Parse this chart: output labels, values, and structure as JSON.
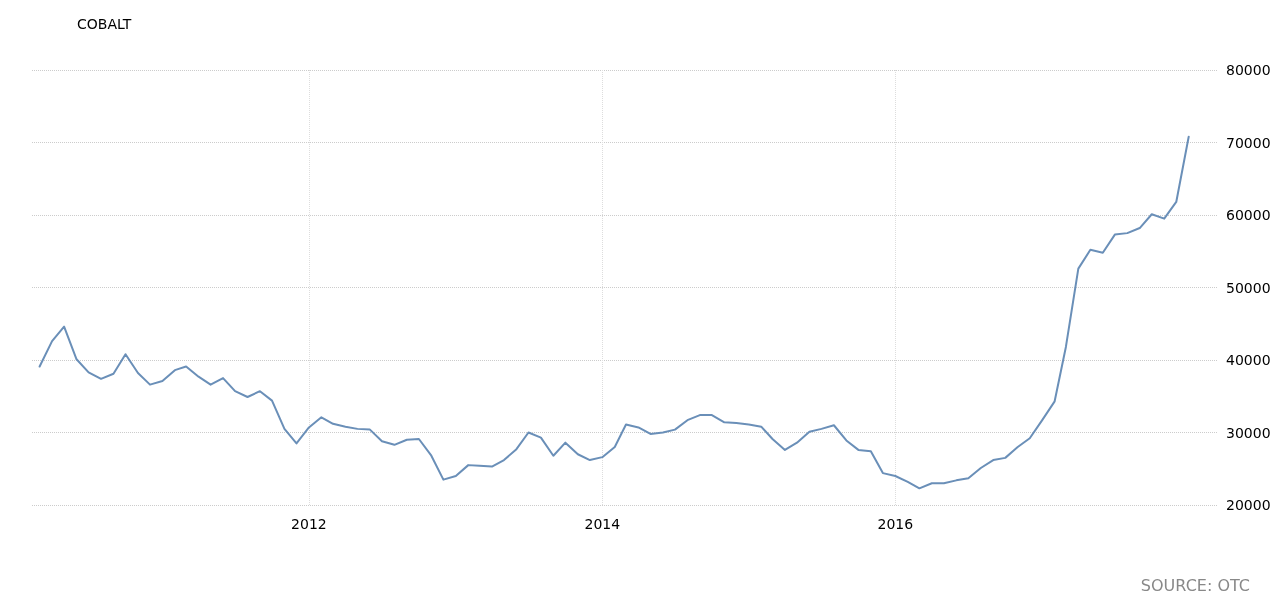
{
  "chart_data": {
    "type": "line",
    "title": "COBALT",
    "annotations": [
      "SOURCE: OTC"
    ],
    "x": [
      "2010-03",
      "2010-04",
      "2010-05",
      "2010-06",
      "2010-07",
      "2010-08",
      "2010-09",
      "2010-10",
      "2010-11",
      "2010-12",
      "2011-01",
      "2011-02",
      "2011-03",
      "2011-04",
      "2011-05",
      "2011-06",
      "2011-07",
      "2011-08",
      "2011-09",
      "2011-10",
      "2011-11",
      "2011-12",
      "2012-01",
      "2012-02",
      "2012-03",
      "2012-04",
      "2012-05",
      "2012-06",
      "2012-07",
      "2012-08",
      "2012-09",
      "2012-10",
      "2012-11",
      "2012-12",
      "2013-01",
      "2013-02",
      "2013-03",
      "2013-04",
      "2013-05",
      "2013-06",
      "2013-07",
      "2013-08",
      "2013-09",
      "2013-10",
      "2013-11",
      "2013-12",
      "2014-01",
      "2014-02",
      "2014-03",
      "2014-04",
      "2014-05",
      "2014-06",
      "2014-07",
      "2014-08",
      "2014-09",
      "2014-10",
      "2014-11",
      "2014-12",
      "2015-01",
      "2015-02",
      "2015-03",
      "2015-04",
      "2015-05",
      "2015-06",
      "2015-07",
      "2015-08",
      "2015-09",
      "2015-10",
      "2015-11",
      "2015-12",
      "2016-01",
      "2016-02",
      "2016-03",
      "2016-04",
      "2016-05",
      "2016-06",
      "2016-07",
      "2016-08",
      "2016-09",
      "2016-10",
      "2016-11",
      "2016-12",
      "2017-01",
      "2017-02",
      "2017-03",
      "2017-04",
      "2017-05",
      "2017-06",
      "2017-07",
      "2017-08",
      "2017-09",
      "2017-10",
      "2017-11",
      "2017-12",
      "2018-01"
    ],
    "series": [
      {
        "color": "#6a8fb8",
        "values": [
          39100,
          42600,
          44600,
          40100,
          38300,
          37400,
          38100,
          40800,
          38200,
          36600,
          37100,
          38600,
          39100,
          37700,
          36600,
          37500,
          35700,
          34900,
          35700,
          34400,
          30500,
          28500,
          30700,
          32100,
          31200,
          30800,
          30500,
          30400,
          28800,
          28300,
          29000,
          29100,
          26800,
          23500,
          24000,
          25500,
          25400,
          25300,
          26200,
          27700,
          30000,
          29300,
          26800,
          28600,
          27000,
          26200,
          26600,
          28000,
          31100,
          30700,
          29800,
          30000,
          30400,
          31700,
          32400,
          32400,
          31400,
          31300,
          31100,
          30800,
          29100,
          27600,
          28600,
          30100,
          30500,
          31000,
          28900,
          27600,
          27400,
          24400,
          24000,
          23200,
          22300,
          23000,
          23000,
          23400,
          23700,
          25100,
          26200,
          26500,
          28000,
          29200,
          31700,
          34300,
          41800,
          52600,
          55200,
          54800,
          57300,
          57500,
          58200,
          60100,
          59500,
          61800,
          70800
        ]
      }
    ],
    "xlim": [
      "2010-02-10",
      "2018-03-15"
    ],
    "xticks": [
      "2012",
      "2014",
      "2016"
    ],
    "ylim": [
      20000,
      80000
    ],
    "yticks": [
      20000,
      30000,
      40000,
      50000,
      60000,
      70000,
      80000
    ],
    "grid": true,
    "marker": "none",
    "line_style": "solid"
  }
}
